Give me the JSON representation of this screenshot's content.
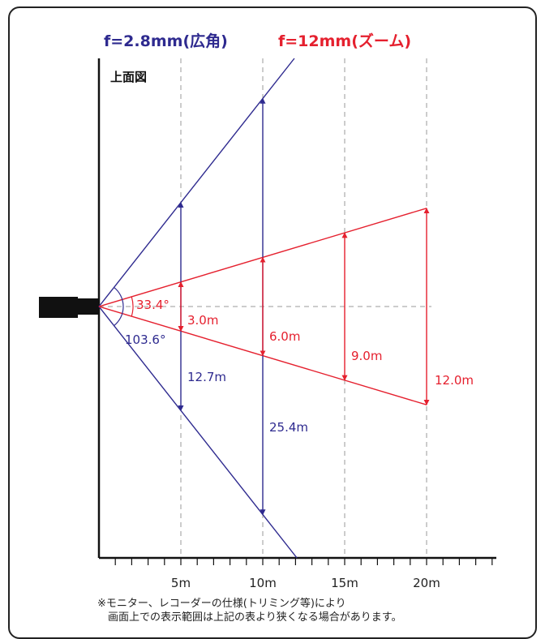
{
  "legend": {
    "wide": "f=2.8mm(広角)",
    "zoom": "f=12mm(ズーム)"
  },
  "view_label": "上面図",
  "colors": {
    "wide": "#2e2a8f",
    "zoom": "#e5202e",
    "grid": "#9a9a9a",
    "axis": "#111111"
  },
  "diagram": {
    "max_distance_m": 24,
    "wide": {
      "angle_label": "103.6°",
      "markers": [
        {
          "distance_m": 5,
          "width_m": 12.7,
          "label": "12.7m"
        },
        {
          "distance_m": 10,
          "width_m": 25.4,
          "label": "25.4m"
        }
      ]
    },
    "zoom": {
      "angle_label": "33.4°",
      "markers": [
        {
          "distance_m": 5,
          "width_m": 3.0,
          "label": "3.0m"
        },
        {
          "distance_m": 10,
          "width_m": 6.0,
          "label": "6.0m"
        },
        {
          "distance_m": 15,
          "width_m": 9.0,
          "label": "9.0m"
        },
        {
          "distance_m": 20,
          "width_m": 12.0,
          "label": "12.0m"
        }
      ]
    },
    "axis_ticks": [
      {
        "distance_m": 5,
        "label": "5m"
      },
      {
        "distance_m": 10,
        "label": "10m"
      },
      {
        "distance_m": 15,
        "label": "15m"
      },
      {
        "distance_m": 20,
        "label": "20m"
      }
    ]
  },
  "note": {
    "line1": "※モニター、レコーダーの仕様(トリミング等)により",
    "line2": "画面上での表示範囲は上記の表より狭くなる場合があります。"
  }
}
